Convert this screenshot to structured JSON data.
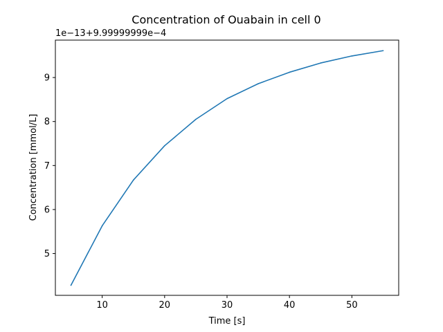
{
  "chart_data": {
    "type": "line",
    "title": "Concentration of Ouabain in cell 0",
    "xlabel": "Time [s]",
    "ylabel": "Concentration [mmol/L]",
    "y_offset_label": "1e−13+9.99999999e−4",
    "xlim": [
      2.5,
      57.5
    ],
    "ylim": [
      4.05,
      9.85
    ],
    "x_ticks": [
      10,
      20,
      30,
      40,
      50
    ],
    "y_ticks": [
      5,
      6,
      7,
      8,
      9
    ],
    "x": [
      5,
      10,
      15,
      20,
      25,
      30,
      35,
      40,
      45,
      50,
      55
    ],
    "series": [
      {
        "values": [
          4.28,
          5.63,
          6.67,
          7.45,
          8.05,
          8.52,
          8.86,
          9.12,
          9.33,
          9.49,
          9.61
        ],
        "color": "#1f77b4"
      }
    ],
    "grid": false
  }
}
